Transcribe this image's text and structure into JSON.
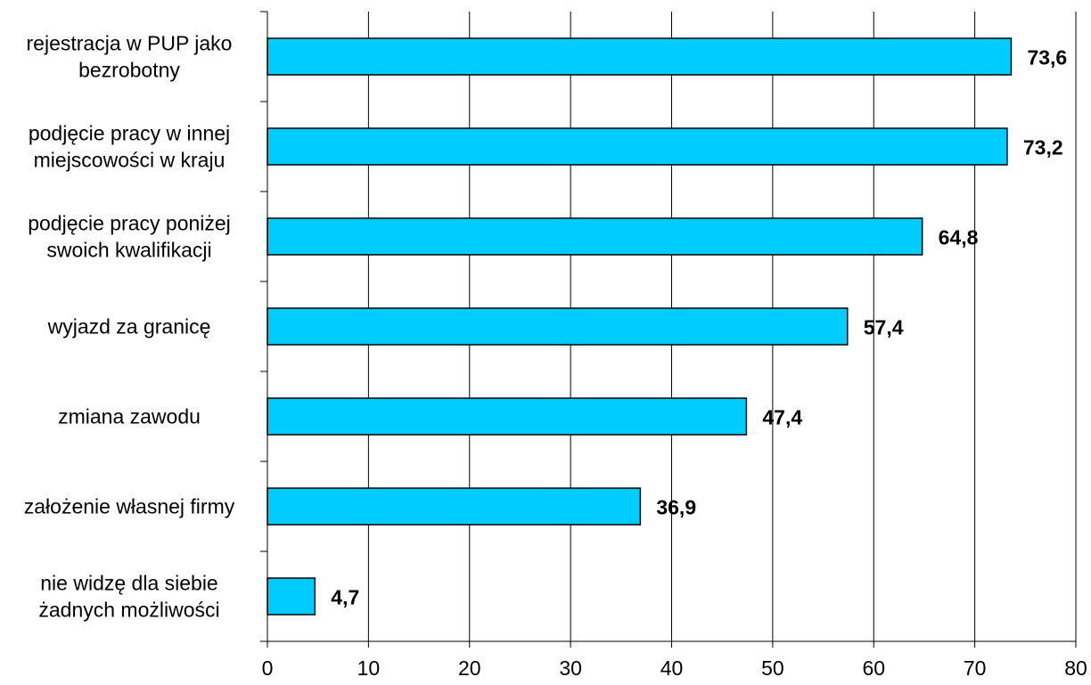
{
  "chart_data": {
    "type": "bar",
    "orientation": "horizontal",
    "categories": [
      [
        "rejestracja w PUP jako",
        "bezrobotny"
      ],
      [
        "podjęcie pracy w innej",
        "miejscowości w kraju"
      ],
      [
        "podjęcie pracy poniżej",
        "swoich kwalifikacji"
      ],
      [
        "wyjazd za granicę"
      ],
      [
        "zmiana zawodu"
      ],
      [
        "założenie własnej firmy"
      ],
      [
        "nie widzę dla siebie",
        "żadnych możliwości"
      ]
    ],
    "values": [
      73.6,
      73.2,
      64.8,
      57.4,
      47.4,
      36.9,
      4.7
    ],
    "value_labels": [
      "73,6",
      "73,2",
      "64,8",
      "57,4",
      "47,4",
      "36,9",
      "4,7"
    ],
    "xlim": [
      0,
      80
    ],
    "xticks": [
      "0",
      "10",
      "20",
      "30",
      "40",
      "50",
      "60",
      "70",
      "80"
    ],
    "grid": "vertical",
    "bar_color": "#00CCFF",
    "title": "",
    "xlabel": "",
    "ylabel": ""
  }
}
